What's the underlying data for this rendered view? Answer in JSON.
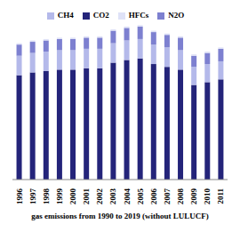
{
  "chart_data": {
    "type": "bar",
    "title": "gas emissions from 1990 to 2019 (without LULUCF)",
    "categories": [
      "1996",
      "1997",
      "1998",
      "1999",
      "2000",
      "2001",
      "2002",
      "2003",
      "2004",
      "2005",
      "2006",
      "2007",
      "2008",
      "2009",
      "2010",
      "2011"
    ],
    "series": [
      {
        "name": "CO2",
        "color": "#24247a",
        "values": [
          75,
          77,
          78,
          79,
          79,
          80,
          80,
          84,
          86,
          87,
          83,
          81,
          79,
          68,
          70,
          72
        ]
      },
      {
        "name": "CH4",
        "color": "#b4b9ea",
        "values": [
          14,
          14,
          14,
          14,
          14,
          14,
          14,
          14,
          14,
          14,
          14,
          14,
          14,
          13,
          13,
          13
        ]
      },
      {
        "name": "N2O",
        "color": "#7d80d0",
        "values": [
          8,
          8,
          8,
          8,
          8,
          8,
          8,
          9,
          9,
          9,
          9,
          9,
          9,
          8,
          8,
          9
        ]
      },
      {
        "name": "HFCs",
        "color": "#dfe2f7",
        "values": [
          1,
          1,
          1,
          1,
          1,
          1,
          1,
          1,
          1,
          1,
          1,
          1,
          1,
          1,
          1,
          1
        ]
      }
    ],
    "ylim": [
      0,
      115
    ],
    "stacked": true,
    "grid": false,
    "legend": "top",
    "tick_labels": "x"
  }
}
